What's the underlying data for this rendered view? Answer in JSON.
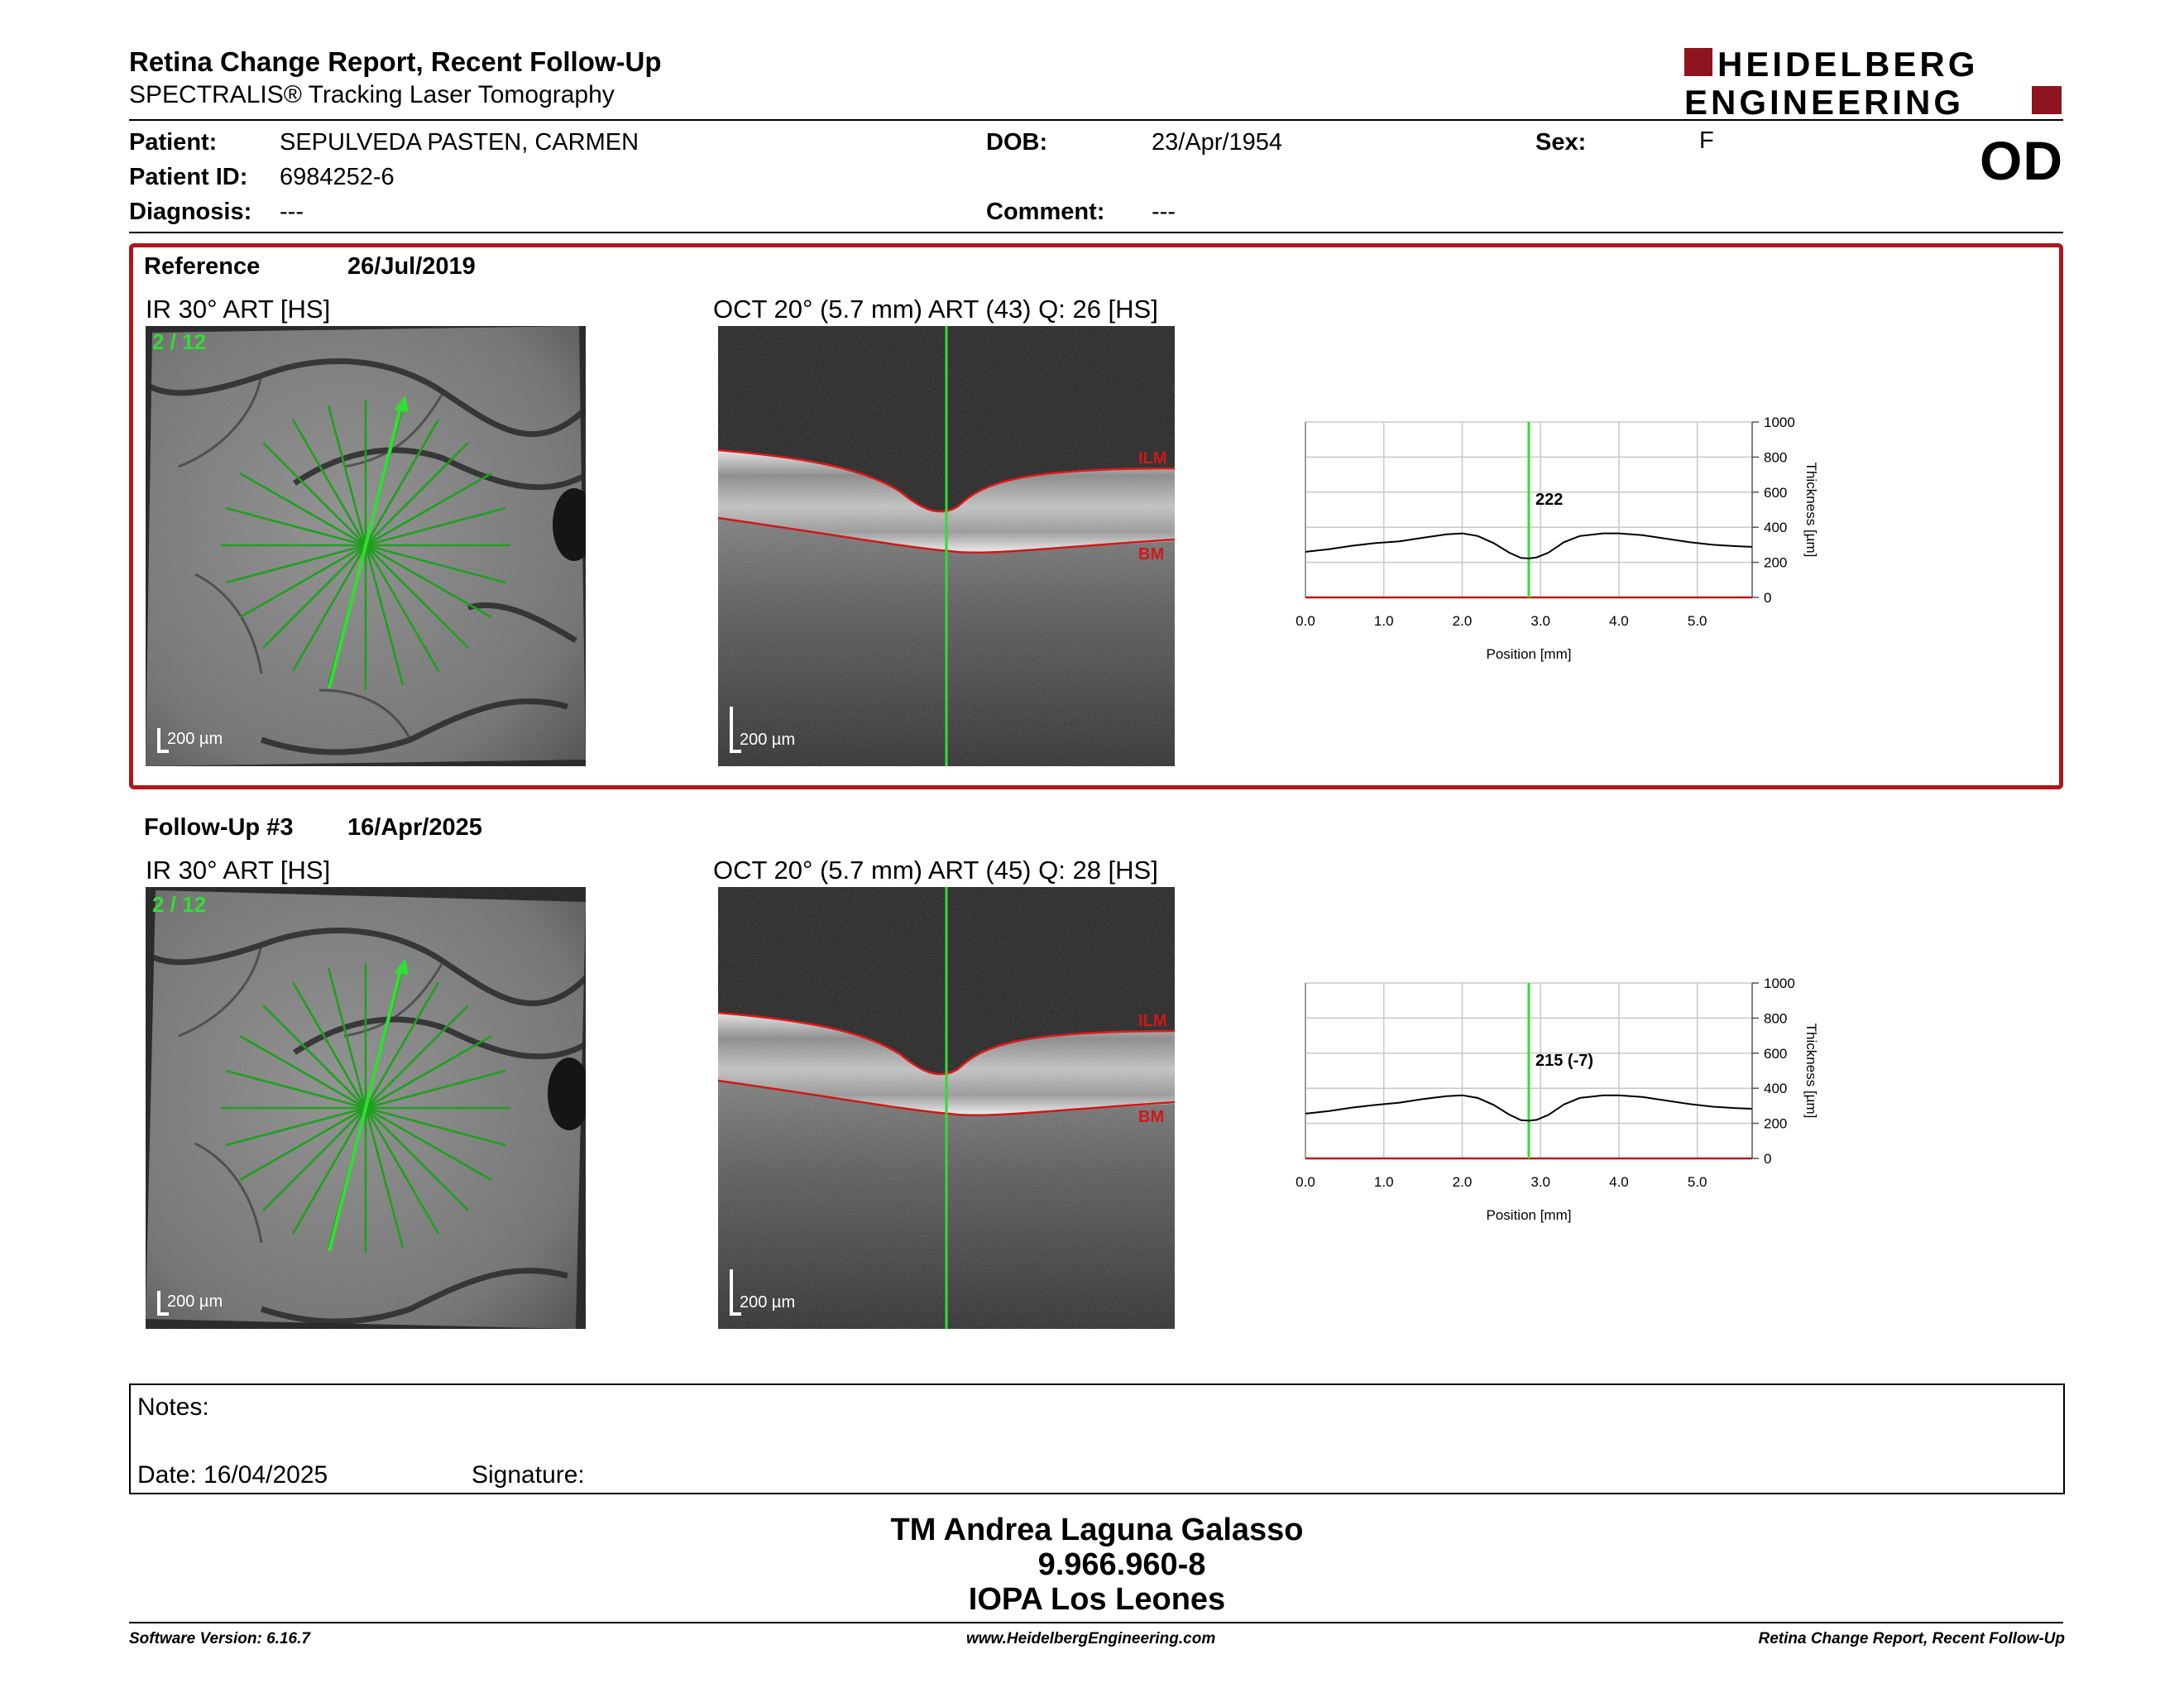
{
  "header": {
    "title": "Retina Change Report, Recent Follow-Up",
    "subtitle": "SPECTRALIS® Tracking Laser Tomography",
    "brand_line1": "HEIDELBERG",
    "brand_line2": "ENGINEERING",
    "eye": "OD"
  },
  "patient": {
    "patient_label": "Patient:",
    "patient_name": "SEPULVEDA PASTEN, CARMEN",
    "id_label": "Patient ID:",
    "id_value": "6984252-6",
    "diagnosis_label": "Diagnosis:",
    "diagnosis_value": "---",
    "dob_label": "DOB:",
    "dob_value": "23/Apr/1954",
    "comment_label": "Comment:",
    "comment_value": "---",
    "sex_label": "Sex:",
    "sex_value": "F"
  },
  "reference": {
    "label": "Reference",
    "date": "26/Jul/2019",
    "ir_caption": "IR 30° ART [HS]",
    "oct_caption": "OCT 20° (5.7 mm) ART (43) Q: 26 [HS]",
    "scan_index": "2 / 12",
    "scale_ir": "200 µm",
    "scale_oct": "200 µm",
    "ilm_label": "ILM",
    "bm_label": "BM",
    "thickness_label": "222"
  },
  "followup": {
    "label": "Follow-Up #3",
    "date": "16/Apr/2025",
    "ir_caption": "IR 30° ART [HS]",
    "oct_caption": "OCT 20° (5.7 mm) ART (45) Q: 28 [HS]",
    "scan_index": "2 / 12",
    "scale_ir": "200 µm",
    "scale_oct": "200 µm",
    "ilm_label": "ILM",
    "bm_label": "BM",
    "thickness_label": "215 (-7)"
  },
  "chart_data": [
    {
      "type": "line",
      "xlabel": "Position [mm]",
      "ylabel": "Thickness [µm]",
      "xlim": [
        0,
        5.7
      ],
      "ylim": [
        0,
        1000
      ],
      "x_ticks": [
        "0.0",
        "1.0",
        "2.0",
        "3.0",
        "4.0",
        "5.0"
      ],
      "y_ticks": [
        "0",
        "200",
        "400",
        "600",
        "800",
        "1000"
      ],
      "marker_x": 2.85,
      "x": [
        0.0,
        0.3,
        0.6,
        0.9,
        1.2,
        1.5,
        1.8,
        2.0,
        2.2,
        2.4,
        2.6,
        2.75,
        2.85,
        2.95,
        3.1,
        3.3,
        3.5,
        3.8,
        4.0,
        4.3,
        4.6,
        4.9,
        5.2,
        5.5,
        5.7
      ],
      "series": [
        {
          "values": [
            260,
            275,
            295,
            310,
            320,
            340,
            360,
            365,
            350,
            310,
            255,
            225,
            222,
            228,
            255,
            315,
            350,
            365,
            365,
            355,
            335,
            315,
            300,
            292,
            288
          ]
        }
      ]
    },
    {
      "type": "line",
      "xlabel": "Position [mm]",
      "ylabel": "Thickness [µm]",
      "xlim": [
        0,
        5.7
      ],
      "ylim": [
        0,
        1000
      ],
      "x_ticks": [
        "0.0",
        "1.0",
        "2.0",
        "3.0",
        "4.0",
        "5.0"
      ],
      "y_ticks": [
        "0",
        "200",
        "400",
        "600",
        "800",
        "1000"
      ],
      "marker_x": 2.85,
      "x": [
        0.0,
        0.3,
        0.6,
        0.9,
        1.2,
        1.5,
        1.8,
        2.0,
        2.2,
        2.4,
        2.6,
        2.75,
        2.85,
        2.95,
        3.1,
        3.3,
        3.5,
        3.8,
        4.0,
        4.3,
        4.6,
        4.9,
        5.2,
        5.5,
        5.7
      ],
      "series": [
        {
          "values": [
            255,
            270,
            290,
            305,
            318,
            338,
            355,
            360,
            345,
            305,
            250,
            218,
            215,
            220,
            248,
            308,
            345,
            360,
            360,
            350,
            330,
            310,
            295,
            287,
            283
          ]
        }
      ]
    }
  ],
  "notes": {
    "notes_label": "Notes:",
    "date_label": "Date: 16/04/2025",
    "signature_label": "Signature:"
  },
  "signer": {
    "name": "TM Andrea Laguna Galasso",
    "id": "9.966.960-8",
    "org": "IOPA Los Leones"
  },
  "footer": {
    "left": "Software Version: 6.16.7",
    "center": "www.HeidelbergEngineering.com",
    "right": "Retina Change Report, Recent Follow-Up"
  },
  "colors": {
    "accent_red": "#b0141c",
    "scan_green": "#33dd33",
    "line_green": "#1fa01f"
  }
}
